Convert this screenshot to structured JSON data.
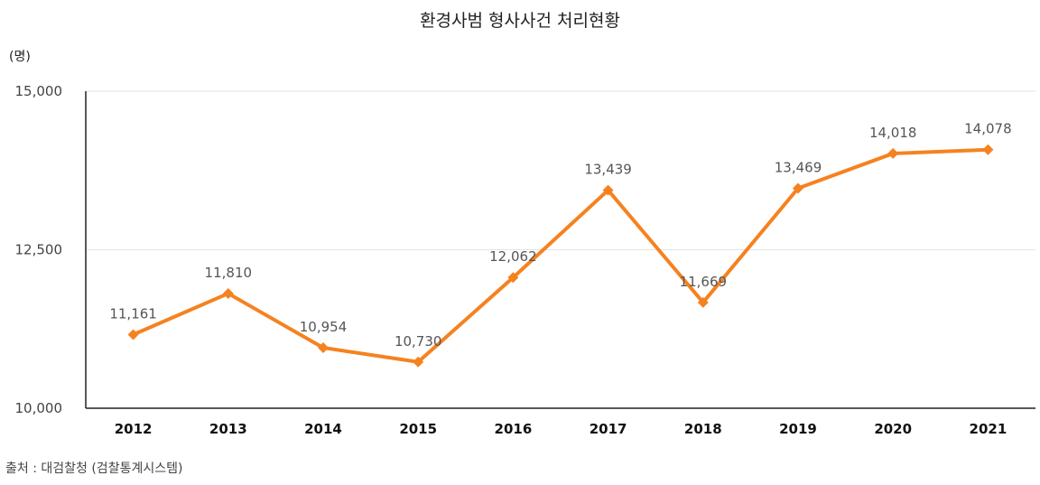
{
  "chart_data": {
    "type": "line",
    "title": "환경사범 형사사건 처리현황",
    "unit_label": "(명)",
    "categories": [
      "2012",
      "2013",
      "2014",
      "2015",
      "2016",
      "2017",
      "2018",
      "2019",
      "2020",
      "2021"
    ],
    "series": [
      {
        "values": [
          11161,
          11810,
          10954,
          10730,
          12062,
          13439,
          11669,
          13469,
          14018,
          14078
        ]
      }
    ],
    "data_labels": [
      "11,161",
      "11,810",
      "10,954",
      "10,730",
      "12,062",
      "13,439",
      "11,669",
      "13,469",
      "14,018",
      "14,078"
    ],
    "ylim": [
      10000,
      15000
    ],
    "yticks": [
      10000,
      12500,
      15000
    ],
    "ytick_labels": [
      "10,000",
      "12,500",
      "15,000"
    ],
    "grid": true,
    "line_color": "#F58220"
  },
  "source": "출처 : 대검찰청 (검찰통계시스템)"
}
